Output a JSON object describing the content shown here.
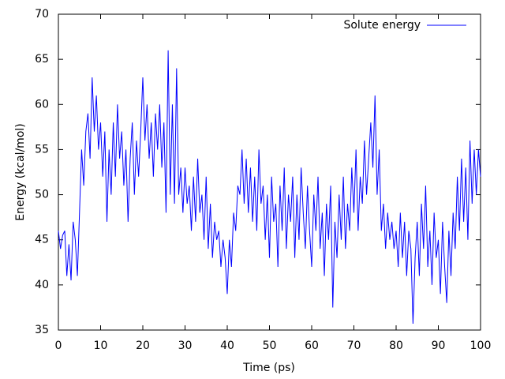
{
  "chart_data": {
    "type": "line",
    "xlabel": "Time (ps)",
    "ylabel": "Energy (kcal/mol)",
    "xlim": [
      0,
      100
    ],
    "ylim": [
      35,
      70
    ],
    "xticks": [
      0,
      10,
      20,
      30,
      40,
      50,
      60,
      70,
      80,
      90,
      100
    ],
    "yticks": [
      35,
      40,
      45,
      50,
      55,
      60,
      65,
      70
    ],
    "legend": "top-right",
    "x": [
      0,
      0.5,
      1,
      1.5,
      2,
      2.5,
      3,
      3.5,
      4,
      4.5,
      5,
      5.5,
      6,
      6.5,
      7,
      7.5,
      8,
      8.5,
      9,
      9.5,
      10,
      10.5,
      11,
      11.5,
      12,
      12.5,
      13,
      13.5,
      14,
      14.5,
      15,
      15.5,
      16,
      16.5,
      17,
      17.5,
      18,
      18.5,
      19,
      19.5,
      20,
      20.5,
      21,
      21.5,
      22,
      22.5,
      23,
      23.5,
      24,
      24.5,
      25,
      25.5,
      26,
      26.5,
      27,
      27.5,
      28,
      28.5,
      29,
      29.5,
      30,
      30.5,
      31,
      31.5,
      32,
      32.5,
      33,
      33.5,
      34,
      34.5,
      35,
      35.5,
      36,
      36.5,
      37,
      37.5,
      38,
      38.5,
      39,
      39.5,
      40,
      40.5,
      41,
      41.5,
      42,
      42.5,
      43,
      43.5,
      44,
      44.5,
      45,
      45.5,
      46,
      46.5,
      47,
      47.5,
      48,
      48.5,
      49,
      49.5,
      50,
      50.5,
      51,
      51.5,
      52,
      52.5,
      53,
      53.5,
      54,
      54.5,
      55,
      55.5,
      56,
      56.5,
      57,
      57.5,
      58,
      58.5,
      59,
      59.5,
      60,
      60.5,
      61,
      61.5,
      62,
      62.5,
      63,
      63.5,
      64,
      64.5,
      65,
      65.5,
      66,
      66.5,
      67,
      67.5,
      68,
      68.5,
      69,
      69.5,
      70,
      70.5,
      71,
      71.5,
      72,
      72.5,
      73,
      73.5,
      74,
      74.5,
      75,
      75.5,
      76,
      76.5,
      77,
      77.5,
      78,
      78.5,
      79,
      79.5,
      80,
      80.5,
      81,
      81.5,
      82,
      82.5,
      83,
      83.5,
      84,
      84.5,
      85,
      85.5,
      86,
      86.5,
      87,
      87.5,
      88,
      88.5,
      89,
      89.5,
      90,
      90.5,
      91,
      91.5,
      92,
      92.5,
      93,
      93.5,
      94,
      94.5,
      95,
      95.5,
      96,
      96.5,
      97,
      97.5,
      98,
      98.5,
      99,
      99.5,
      100
    ],
    "series": [
      {
        "name": "Solute energy",
        "color": "#0000ff",
        "values": [
          46,
          44,
          45.5,
          46,
          41,
          44.5,
          40.5,
          47,
          45,
          41,
          48,
          55,
          51,
          57,
          59,
          54,
          63,
          57,
          61,
          55,
          58,
          52,
          57,
          47,
          55,
          50,
          58,
          52,
          60,
          54,
          57,
          51,
          55,
          47,
          54,
          58,
          50,
          56,
          52,
          57,
          63,
          56,
          60,
          54,
          58,
          52,
          59,
          55,
          60,
          53,
          58,
          48,
          66,
          50,
          60,
          49,
          64,
          50,
          53,
          48,
          53,
          49,
          51,
          46,
          52,
          47,
          54,
          48,
          50,
          45,
          52,
          44,
          49,
          43,
          47,
          45,
          46,
          42,
          45,
          43,
          39,
          45,
          42,
          48,
          46,
          51,
          50,
          55,
          49,
          54,
          48,
          53,
          47,
          52,
          46,
          55,
          49,
          51,
          45,
          50,
          43,
          52,
          47,
          49,
          42,
          51,
          46,
          53,
          44,
          50,
          47,
          52,
          43,
          50,
          45,
          53,
          48,
          44,
          51,
          46,
          42,
          50,
          46,
          52,
          44,
          48,
          41,
          49,
          45,
          51,
          37.5,
          47,
          43,
          50,
          45,
          52,
          44,
          49,
          46,
          53,
          48,
          55,
          46,
          52,
          49,
          56,
          50,
          54,
          58,
          53,
          61,
          50,
          55,
          46,
          49,
          44,
          48,
          45,
          47,
          44,
          46,
          42,
          48,
          43,
          47,
          41,
          46,
          44,
          35.7,
          43,
          47,
          41,
          49,
          44,
          51,
          42,
          46,
          40,
          48,
          43,
          45,
          39,
          47,
          42,
          38,
          46,
          41,
          48,
          44,
          52,
          46,
          54,
          47,
          53,
          45,
          56,
          49,
          55,
          50,
          55,
          52
        ]
      }
    ]
  }
}
